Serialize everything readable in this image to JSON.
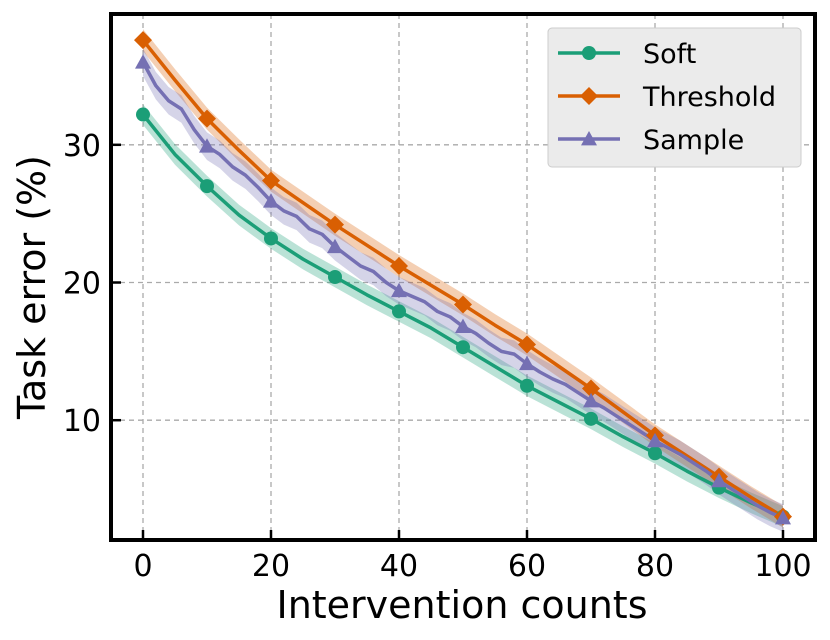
{
  "chart_data": {
    "type": "line",
    "title": "",
    "xlabel": "Intervention counts",
    "ylabel": "Task error (%)",
    "xlim": [
      -5,
      105
    ],
    "ylim": [
      1.3,
      39.5
    ],
    "xticks": [
      0,
      20,
      40,
      60,
      80,
      100
    ],
    "xtick_labels": [
      "0",
      "20",
      "40",
      "60",
      "80",
      "100"
    ],
    "yticks": [
      10,
      20,
      30
    ],
    "ytick_labels": [
      "10",
      "20",
      "30"
    ],
    "grid": true,
    "legend_position": "top-right",
    "series": [
      {
        "name": "Soft",
        "color": "#1b9e77",
        "marker": "circle",
        "x": [
          0,
          5,
          10,
          15,
          20,
          25,
          30,
          35,
          40,
          45,
          50,
          55,
          60,
          65,
          70,
          75,
          80,
          85,
          90,
          95,
          100
        ],
        "values": [
          32.2,
          29.3,
          27.0,
          24.9,
          23.2,
          21.7,
          20.4,
          19.1,
          17.9,
          16.7,
          15.3,
          13.9,
          12.5,
          11.3,
          10.1,
          8.8,
          7.6,
          6.3,
          5.1,
          4.0,
          3.0
        ],
        "band": 0.75
      },
      {
        "name": "Threshold",
        "color": "#d95f02",
        "marker": "diamond",
        "x": [
          0,
          5,
          10,
          15,
          20,
          25,
          30,
          35,
          40,
          45,
          50,
          55,
          60,
          65,
          70,
          75,
          80,
          85,
          90,
          95,
          100
        ],
        "values": [
          37.6,
          34.7,
          31.9,
          29.6,
          27.4,
          25.8,
          24.2,
          22.7,
          21.2,
          19.8,
          18.4,
          16.9,
          15.5,
          13.9,
          12.3,
          10.6,
          8.9,
          7.4,
          5.9,
          4.4,
          3.0
        ],
        "band": 0.8
      },
      {
        "name": "Sample",
        "color": "#7570b3",
        "marker": "triangle",
        "x": [
          0,
          2,
          4,
          6,
          8,
          10,
          12,
          14,
          16,
          18,
          20,
          22,
          24,
          26,
          28,
          30,
          32,
          34,
          36,
          38,
          40,
          42,
          44,
          46,
          48,
          50,
          52,
          54,
          56,
          58,
          60,
          62,
          64,
          66,
          68,
          70,
          72,
          74,
          76,
          78,
          80,
          82,
          84,
          86,
          88,
          90,
          92,
          94,
          96,
          98,
          100
        ],
        "values": [
          36.0,
          34.3,
          33.2,
          32.6,
          31.1,
          29.9,
          29.3,
          28.4,
          27.8,
          26.9,
          25.9,
          25.2,
          24.8,
          23.9,
          23.5,
          22.6,
          21.9,
          21.2,
          20.8,
          20.0,
          19.4,
          19.0,
          18.6,
          17.9,
          17.5,
          16.8,
          16.3,
          15.6,
          15.0,
          14.8,
          14.1,
          13.5,
          13.0,
          12.6,
          12.0,
          11.4,
          10.9,
          10.3,
          9.7,
          9.1,
          8.5,
          8.0,
          7.5,
          6.9,
          6.3,
          5.6,
          5.0,
          4.4,
          3.8,
          3.3,
          2.9
        ],
        "marker_x": [
          0,
          10,
          20,
          30,
          40,
          50,
          60,
          70,
          80,
          90,
          100
        ],
        "band": 1.0
      }
    ]
  }
}
